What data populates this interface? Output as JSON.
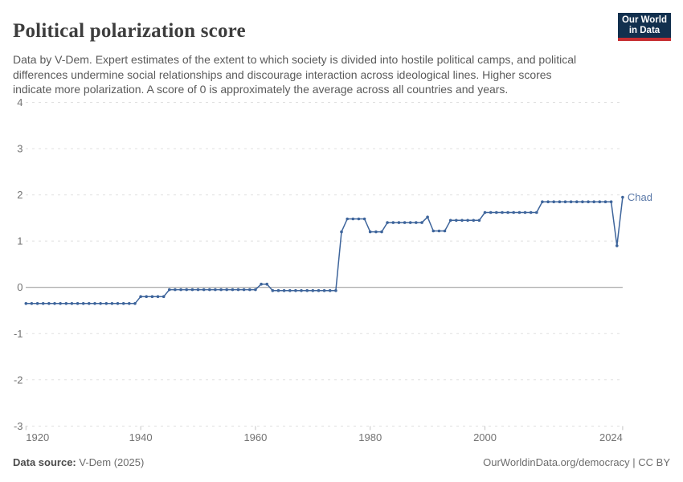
{
  "header": {
    "title": "Political polarization score",
    "subtitle": "Data by V-Dem. Expert estimates of the extent to which society is divided into hostile political camps, and political differences undermine social relationships and discourage interaction across ideological lines. Higher scores indicate more polarization. A score of 0 is approximately the average across all countries and years.",
    "logo": {
      "line1": "Our World",
      "line2": "in Data",
      "bg_color": "#12304e",
      "accent_color": "#c62d31"
    }
  },
  "chart_data": {
    "type": "line",
    "title": "Political polarization score",
    "entity_label": "Chad",
    "xlabel": "",
    "ylabel": "",
    "xlim": [
      1920,
      2024
    ],
    "ylim": [
      -3,
      4
    ],
    "xticks": [
      1920,
      1940,
      1960,
      1980,
      2000,
      2024
    ],
    "yticks": [
      -3,
      -2,
      -1,
      0,
      1,
      2,
      3,
      4
    ],
    "grid": "dashed horizontal, solid zero line",
    "legend_position": "end-of-line label",
    "series": [
      {
        "name": "Chad",
        "color": "#3d649b",
        "start_year": 1920,
        "values": [
          -0.35,
          -0.35,
          -0.35,
          -0.35,
          -0.35,
          -0.35,
          -0.35,
          -0.35,
          -0.35,
          -0.35,
          -0.35,
          -0.35,
          -0.35,
          -0.35,
          -0.35,
          -0.35,
          -0.35,
          -0.35,
          -0.35,
          -0.35,
          -0.2,
          -0.2,
          -0.2,
          -0.2,
          -0.2,
          -0.05,
          -0.05,
          -0.05,
          -0.05,
          -0.05,
          -0.05,
          -0.05,
          -0.05,
          -0.05,
          -0.05,
          -0.05,
          -0.05,
          -0.05,
          -0.05,
          -0.05,
          -0.05,
          0.07,
          0.07,
          -0.07,
          -0.07,
          -0.07,
          -0.07,
          -0.07,
          -0.07,
          -0.07,
          -0.07,
          -0.07,
          -0.07,
          -0.07,
          -0.07,
          1.2,
          1.48,
          1.48,
          1.48,
          1.48,
          1.2,
          1.2,
          1.2,
          1.4,
          1.4,
          1.4,
          1.4,
          1.4,
          1.4,
          1.4,
          1.52,
          1.22,
          1.22,
          1.22,
          1.45,
          1.45,
          1.45,
          1.45,
          1.45,
          1.45,
          1.62,
          1.62,
          1.62,
          1.62,
          1.62,
          1.62,
          1.62,
          1.62,
          1.62,
          1.62,
          1.85,
          1.85,
          1.85,
          1.85,
          1.85,
          1.85,
          1.85,
          1.85,
          1.85,
          1.85,
          1.85,
          1.85,
          1.85,
          0.9,
          1.95
        ]
      }
    ],
    "colors": {
      "line": "#3d649b",
      "entity_label": "#5b79a8",
      "gridline": "#e0e0e0",
      "zero_line": "#a0a0a0",
      "axis_tick": "#c4c4c4",
      "axis_text": "#737373"
    }
  },
  "footer": {
    "source_label": "Data source:",
    "source_value": " V-Dem (2025)",
    "credit": "OurWorldinData.org/democracy | CC BY"
  }
}
